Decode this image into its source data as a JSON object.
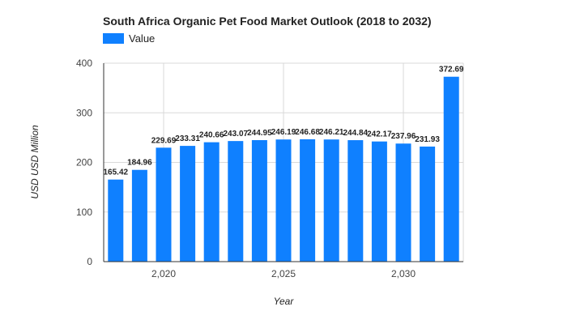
{
  "chart_data": {
    "type": "bar",
    "title": "South Africa Organic Pet Food Market Outlook (2018 to 2032)",
    "xlabel": "Year",
    "ylabel": "USD USD Million",
    "x": [
      2018,
      2019,
      2020,
      2021,
      2022,
      2023,
      2024,
      2025,
      2026,
      2027,
      2028,
      2029,
      2030,
      2031,
      2032
    ],
    "series": [
      {
        "name": "Value",
        "values": [
          165.42,
          184.96,
          229.69,
          233.31,
          240.66,
          243.07,
          244.95,
          246.19,
          246.68,
          246.21,
          244.84,
          242.17,
          237.96,
          231.93,
          372.69
        ],
        "labels": [
          "165.42",
          "184.96",
          "229.69",
          "233.31",
          "240.66",
          "243.07",
          "244.95",
          "246.19",
          "246.68",
          "246.21",
          "244.84",
          "242.17",
          "237.96",
          "231.93",
          "372.69"
        ]
      }
    ],
    "ylim": [
      0,
      400
    ],
    "y_ticks": [
      0,
      100,
      200,
      300,
      400
    ],
    "y_tick_labels": [
      "0",
      "100",
      "200",
      "300",
      "400"
    ],
    "x_ticks": [
      2020,
      2025,
      2030
    ],
    "x_tick_labels": [
      "2,020",
      "2,025",
      "2,030"
    ],
    "grid": true,
    "legend_position": "top-left",
    "colors": {
      "bar": "#0F80FF",
      "grid": "#D9D9D9",
      "axis": "#333333"
    }
  }
}
